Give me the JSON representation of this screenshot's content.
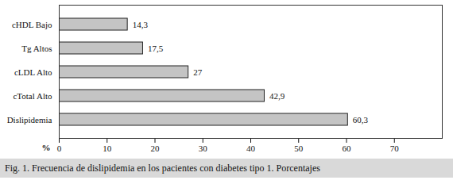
{
  "chart_data": {
    "type": "bar",
    "orientation": "horizontal",
    "title": "Fig. 1. Frecuencia de dislipidemia en los pacientes con diabetes tipo 1. Porcentajes",
    "x_label": "%",
    "categories": [
      "cHDL Bajo",
      "Tg Altos",
      "cLDL Alto",
      "cTotal Alto",
      "Dislipidemia"
    ],
    "values": [
      14.3,
      17.5,
      27,
      42.9,
      60.3
    ],
    "value_labels": [
      "14,3",
      "17,5",
      "27",
      "42,9",
      "60,3"
    ],
    "data_labels": true,
    "color": "#c4c4c4",
    "xlim": [
      0,
      80
    ],
    "xticks": [
      0,
      10,
      20,
      30,
      40,
      50,
      60,
      70
    ],
    "grid": false
  }
}
